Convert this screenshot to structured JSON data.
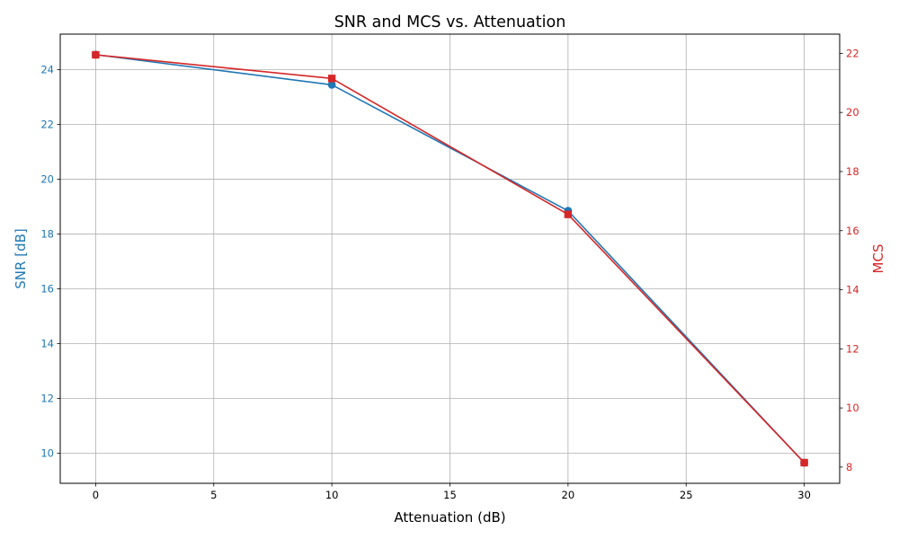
{
  "chart_data": {
    "type": "line",
    "title": "SNR and MCS vs. Attenuation",
    "xlabel": "Attenuation (dB)",
    "ylabel": "SNR [dB]",
    "y2label": "MCS",
    "x": [
      0,
      10,
      20,
      30
    ],
    "xlim": [
      -1.5,
      31.5
    ],
    "xticks": [
      0,
      5,
      10,
      15,
      20,
      25,
      30
    ],
    "ylim": [
      8.9,
      25.3
    ],
    "yticks": [
      10,
      12,
      14,
      16,
      18,
      20,
      22,
      24
    ],
    "y2lim": [
      7.45,
      22.65
    ],
    "y2ticks": [
      8,
      10,
      12,
      14,
      16,
      18,
      20,
      22
    ],
    "grid": true,
    "series": [
      {
        "axis": "left",
        "marker": "circle",
        "color": "#1f77b4",
        "values": [
          24.55,
          23.45,
          18.85,
          9.65
        ]
      },
      {
        "axis": "right",
        "marker": "square",
        "color": "#d62728",
        "values": [
          21.95,
          21.15,
          16.55,
          8.15
        ]
      }
    ]
  }
}
